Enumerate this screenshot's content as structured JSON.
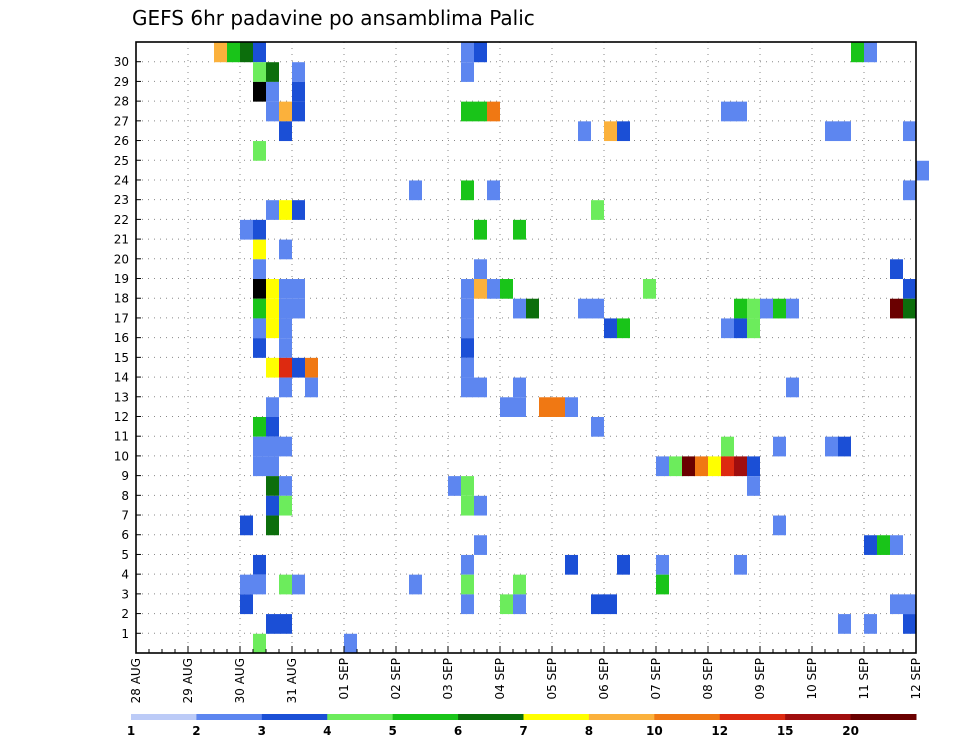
{
  "chart_data": {
    "type": "heatmap",
    "title": "GEFS 6hr padavine po ansamblima Palic",
    "xlabel": "",
    "ylabel": "",
    "x_tick_labels": [
      "28 AUG",
      "29 AUG",
      "30 AUG",
      "31 AUG",
      "01 SEP",
      "02 SEP",
      "03 SEP",
      "04 SEP",
      "05 SEP",
      "06 SEP",
      "07 SEP",
      "08 SEP",
      "09 SEP",
      "10 SEP",
      "11 SEP",
      "12 SEP"
    ],
    "y_tick_labels": [
      "1",
      "2",
      "3",
      "4",
      "5",
      "6",
      "7",
      "8",
      "9",
      "10",
      "11",
      "12",
      "13",
      "14",
      "15",
      "16",
      "17",
      "18",
      "19",
      "20",
      "21",
      "22",
      "23",
      "24",
      "25",
      "26",
      "27",
      "28",
      "29",
      "30"
    ],
    "x_step_hours": 6,
    "grid": true,
    "colorbar": {
      "tick_labels": [
        "1",
        "2",
        "3",
        "4",
        "5",
        "6",
        "7",
        "8",
        "10",
        "12",
        "15",
        "20"
      ],
      "colors": [
        "#bccbf7",
        "#5d86f0",
        "#1b4fd6",
        "#6cec5c",
        "#19c419",
        "#0c6e0c",
        "#ffff00",
        "#fbb13c",
        "#f07813",
        "#dd2a10",
        "#a00e0e",
        "#6a0000"
      ]
    },
    "cells": [
      [
        30,
        6,
        7
      ],
      [
        30,
        7,
        4
      ],
      [
        30,
        8,
        5
      ],
      [
        30,
        9,
        2
      ],
      [
        30,
        25,
        1
      ],
      [
        30,
        26,
        2
      ],
      [
        30,
        55,
        4
      ],
      [
        30,
        56,
        1
      ],
      [
        29,
        9,
        3
      ],
      [
        29,
        10,
        5
      ],
      [
        29,
        12,
        1
      ],
      [
        29,
        25,
        1
      ],
      [
        28,
        9,
        12
      ],
      [
        28,
        10,
        1
      ],
      [
        28,
        12,
        2
      ],
      [
        27,
        10,
        1
      ],
      [
        27,
        11,
        7
      ],
      [
        27,
        12,
        2
      ],
      [
        27,
        25,
        4
      ],
      [
        27,
        26,
        4
      ],
      [
        27,
        27,
        8
      ],
      [
        27,
        45,
        1
      ],
      [
        27,
        46,
        1
      ],
      [
        26,
        11,
        2
      ],
      [
        26,
        34,
        1
      ],
      [
        26,
        36,
        7
      ],
      [
        26,
        37,
        2
      ],
      [
        26,
        53,
        1
      ],
      [
        26,
        54,
        1
      ],
      [
        26,
        59,
        1
      ],
      [
        25,
        9,
        3
      ],
      [
        24,
        60,
        1
      ],
      [
        23,
        21,
        1
      ],
      [
        23,
        25,
        4
      ],
      [
        23,
        27,
        1
      ],
      [
        23,
        59,
        1
      ],
      [
        22,
        10,
        1
      ],
      [
        22,
        11,
        6
      ],
      [
        22,
        12,
        2
      ],
      [
        22,
        35,
        3
      ],
      [
        21,
        8,
        1
      ],
      [
        21,
        9,
        2
      ],
      [
        21,
        26,
        4
      ],
      [
        21,
        29,
        4
      ],
      [
        20,
        9,
        6
      ],
      [
        20,
        11,
        1
      ],
      [
        19,
        9,
        1
      ],
      [
        19,
        26,
        1
      ],
      [
        19,
        58,
        2
      ],
      [
        18,
        9,
        12
      ],
      [
        18,
        10,
        6
      ],
      [
        18,
        11,
        1
      ],
      [
        18,
        12,
        1
      ],
      [
        18,
        25,
        1
      ],
      [
        18,
        26,
        7
      ],
      [
        18,
        27,
        1
      ],
      [
        18,
        28,
        4
      ],
      [
        18,
        39,
        3
      ],
      [
        18,
        59,
        2
      ],
      [
        17,
        9,
        4
      ],
      [
        17,
        10,
        6
      ],
      [
        17,
        11,
        1
      ],
      [
        17,
        12,
        1
      ],
      [
        17,
        25,
        1
      ],
      [
        17,
        29,
        1
      ],
      [
        17,
        30,
        5
      ],
      [
        17,
        34,
        1
      ],
      [
        17,
        35,
        1
      ],
      [
        17,
        46,
        4
      ],
      [
        17,
        47,
        3
      ],
      [
        17,
        48,
        1
      ],
      [
        17,
        49,
        4
      ],
      [
        17,
        50,
        1
      ],
      [
        17,
        58,
        11
      ],
      [
        17,
        59,
        5
      ],
      [
        16,
        9,
        1
      ],
      [
        16,
        10,
        6
      ],
      [
        16,
        11,
        1
      ],
      [
        16,
        25,
        1
      ],
      [
        16,
        36,
        2
      ],
      [
        16,
        37,
        4
      ],
      [
        16,
        45,
        1
      ],
      [
        16,
        46,
        2
      ],
      [
        16,
        47,
        3
      ],
      [
        15,
        9,
        2
      ],
      [
        15,
        11,
        1
      ],
      [
        15,
        25,
        2
      ],
      [
        14,
        10,
        6
      ],
      [
        14,
        11,
        9
      ],
      [
        14,
        12,
        2
      ],
      [
        14,
        13,
        8
      ],
      [
        14,
        25,
        1
      ],
      [
        13,
        11,
        1
      ],
      [
        13,
        13,
        1
      ],
      [
        13,
        25,
        1
      ],
      [
        13,
        26,
        1
      ],
      [
        13,
        29,
        1
      ],
      [
        13,
        50,
        1
      ],
      [
        12,
        10,
        1
      ],
      [
        12,
        28,
        1
      ],
      [
        12,
        29,
        1
      ],
      [
        12,
        31,
        8
      ],
      [
        12,
        32,
        8
      ],
      [
        12,
        33,
        1
      ],
      [
        11,
        9,
        4
      ],
      [
        11,
        10,
        2
      ],
      [
        11,
        35,
        1
      ],
      [
        10,
        9,
        1
      ],
      [
        10,
        10,
        1
      ],
      [
        10,
        11,
        1
      ],
      [
        10,
        45,
        3
      ],
      [
        10,
        49,
        1
      ],
      [
        10,
        53,
        1
      ],
      [
        10,
        54,
        2
      ],
      [
        9,
        9,
        1
      ],
      [
        9,
        10,
        1
      ],
      [
        9,
        40,
        1
      ],
      [
        9,
        41,
        3
      ],
      [
        9,
        42,
        11
      ],
      [
        9,
        43,
        8
      ],
      [
        9,
        44,
        6
      ],
      [
        9,
        45,
        9
      ],
      [
        9,
        46,
        10
      ],
      [
        9,
        47,
        2
      ],
      [
        8,
        10,
        5
      ],
      [
        8,
        11,
        1
      ],
      [
        8,
        24,
        1
      ],
      [
        8,
        25,
        3
      ],
      [
        8,
        47,
        1
      ],
      [
        7,
        10,
        2
      ],
      [
        7,
        11,
        3
      ],
      [
        7,
        25,
        3
      ],
      [
        7,
        26,
        1
      ],
      [
        6,
        8,
        2
      ],
      [
        6,
        10,
        5
      ],
      [
        6,
        49,
        1
      ],
      [
        5,
        26,
        1
      ],
      [
        5,
        56,
        2
      ],
      [
        5,
        57,
        4
      ],
      [
        5,
        58,
        1
      ],
      [
        4,
        9,
        2
      ],
      [
        4,
        25,
        1
      ],
      [
        4,
        33,
        2
      ],
      [
        4,
        37,
        2
      ],
      [
        4,
        40,
        1
      ],
      [
        4,
        46,
        1
      ],
      [
        3,
        8,
        1
      ],
      [
        3,
        9,
        1
      ],
      [
        3,
        11,
        3
      ],
      [
        3,
        12,
        1
      ],
      [
        3,
        21,
        1
      ],
      [
        3,
        25,
        3
      ],
      [
        3,
        29,
        3
      ],
      [
        3,
        40,
        4
      ],
      [
        2,
        8,
        2
      ],
      [
        2,
        25,
        1
      ],
      [
        2,
        28,
        3
      ],
      [
        2,
        29,
        1
      ],
      [
        2,
        35,
        2
      ],
      [
        2,
        36,
        2
      ],
      [
        2,
        58,
        1
      ],
      [
        2,
        59,
        1
      ],
      [
        1,
        10,
        2
      ],
      [
        1,
        11,
        2
      ],
      [
        1,
        54,
        1
      ],
      [
        1,
        56,
        1
      ],
      [
        1,
        59,
        2
      ],
      [
        0,
        9,
        3
      ],
      [
        0,
        16,
        1
      ]
    ]
  }
}
